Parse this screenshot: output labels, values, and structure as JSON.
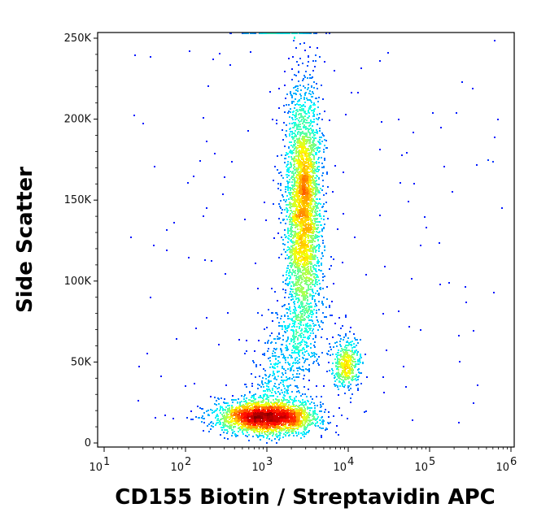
{
  "chart_data": {
    "type": "scatter",
    "title": "",
    "xlabel": "CD155 Biotin / Streptavidin APC",
    "ylabel": "Side Scatter",
    "x_scale": "log",
    "xlim": [
      10,
      1000000
    ],
    "ylim": [
      0,
      262144
    ],
    "x_ticks": [
      {
        "value": 10,
        "base": "10",
        "exp": "1"
      },
      {
        "value": 100,
        "base": "10",
        "exp": "2"
      },
      {
        "value": 1000,
        "base": "10",
        "exp": "3"
      },
      {
        "value": 10000,
        "base": "10",
        "exp": "4"
      },
      {
        "value": 100000,
        "base": "10",
        "exp": "5"
      },
      {
        "value": 1000000,
        "base": "10",
        "exp": "6"
      }
    ],
    "y_ticks": [
      {
        "value": 0,
        "label": "0"
      },
      {
        "value": 50000,
        "label": "50K"
      },
      {
        "value": 100000,
        "label": "100K"
      },
      {
        "value": 150000,
        "label": "150K"
      },
      {
        "value": 200000,
        "label": "200K"
      },
      {
        "value": 250000,
        "label": "250K"
      }
    ],
    "colormap": "jet density (blue low, red high)",
    "populations": [
      {
        "x_center": 1000,
        "y_center": 16000,
        "x_log_spread": 0.28,
        "y_spread": 5000,
        "approx_events": 2600
      },
      {
        "x_center": 2800,
        "y_center": 145000,
        "x_log_spread": 0.1,
        "y_spread": 36000,
        "approx_events": 3200
      },
      {
        "x_center": 9500,
        "y_center": 48000,
        "x_log_spread": 0.08,
        "y_spread": 8000,
        "approx_events": 450
      }
    ],
    "grid": false,
    "legend": "none"
  }
}
